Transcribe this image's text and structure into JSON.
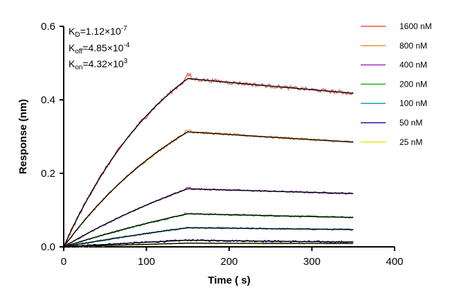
{
  "chart_data": {
    "type": "line",
    "xlabel": "Time ( s)",
    "ylabel": "Response (nm)",
    "xlim": [
      0,
      400
    ],
    "ylim": [
      0,
      0.6
    ],
    "x_ticks": [
      "0",
      "100",
      "200",
      "300",
      "400"
    ],
    "y_ticks": [
      "0.0",
      "0.2",
      "0.4",
      "0.6"
    ],
    "legend_position": "top-right",
    "annotations": {
      "kd_main": "K",
      "kd_sub": "D",
      "kd_eq": "=1.12×10",
      "kd_exp": "-7",
      "koff_main": "K",
      "koff_sub": "off",
      "koff_eq": "=4.85×10",
      "koff_exp": "-4",
      "kon_main": "K",
      "kon_sub": "on",
      "kon_eq": "=4.32×10",
      "kon_exp": "3"
    },
    "association_end_s": 150,
    "end_time_s": 350,
    "fit_color": "#000000",
    "series": [
      {
        "name": "1600 nM",
        "color": "#e8534b",
        "peak": 0.458,
        "end": 0.418,
        "curve_k": 0.0073
      },
      {
        "name": "800 nM",
        "color": "#f0963c",
        "peak": 0.313,
        "end": 0.285,
        "curve_k": 0.0055
      },
      {
        "name": "400 nM",
        "color": "#a43cc8",
        "peak": 0.158,
        "end": 0.145,
        "curve_k": 0.0032
      },
      {
        "name": "200 nM",
        "color": "#28b428",
        "peak": 0.09,
        "end": 0.08,
        "curve_k": 0.0025
      },
      {
        "name": "100 nM",
        "color": "#2aa0c0",
        "peak": 0.052,
        "end": 0.047,
        "curve_k": 0.0018
      },
      {
        "name": "50 nM",
        "color": "#1a1aa8",
        "peak": 0.018,
        "end": 0.013,
        "curve_k": 0.0015
      },
      {
        "name": "25 nM",
        "color": "#e8e820",
        "peak": 0.01,
        "end": 0.009,
        "curve_k": 0.0012
      }
    ]
  }
}
